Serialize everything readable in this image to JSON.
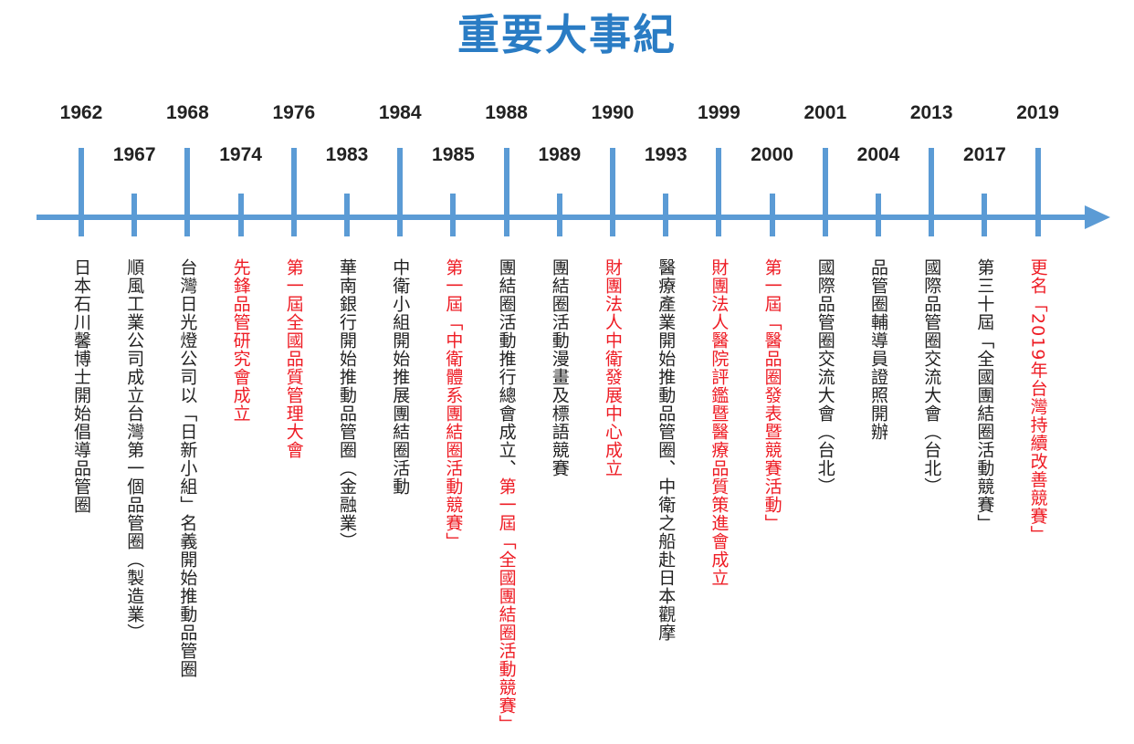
{
  "title": "重要大事紀",
  "events": [
    {
      "year": "1962",
      "text": "日本石川馨博士開始倡導品管圈",
      "highlight": false
    },
    {
      "year": "1967",
      "text": "順風工業公司成立台灣第一個品管圈（製造業）",
      "highlight": false
    },
    {
      "year": "1968",
      "text": "台灣日光燈公司以「日新小組」名義開始推動品管圈",
      "highlight": false
    },
    {
      "year": "1974",
      "text": "先鋒品管研究會成立",
      "highlight": true
    },
    {
      "year": "1976",
      "text": "第一屆全國品質管理大會",
      "highlight": true
    },
    {
      "year": "1983",
      "text": "華南銀行開始推動品管圈（金融業）",
      "highlight": false
    },
    {
      "year": "1984",
      "text": "中衛小組開始推展團結圈活動",
      "highlight": false
    },
    {
      "year": "1985",
      "text": "第一屆「中衛體系團結圈活動競賽」",
      "highlight": true
    },
    {
      "year": "1988",
      "text": "團結圈活動推行總會成立、",
      "text2": "第一屆「全國團結圈活動競賽」",
      "highlight": false
    },
    {
      "year": "1989",
      "text": "團結圈活動漫畫及標語競賽",
      "highlight": false
    },
    {
      "year": "1990",
      "text": "財團法人中衛發展中心成立",
      "highlight": true
    },
    {
      "year": "1993",
      "text": "醫療產業開始推動品管圈、中衛之船赴日本觀摩",
      "highlight": false
    },
    {
      "year": "1999",
      "text": "財團法人醫院評鑑暨醫療品質策進會成立",
      "highlight": true
    },
    {
      "year": "2000",
      "text": "第一屆「醫品圈發表暨競賽活動」",
      "highlight": true
    },
    {
      "year": "2001",
      "text": "國際品管圈交流大會（台北）",
      "highlight": false
    },
    {
      "year": "2004",
      "text": "品管圈輔導員證照開辦",
      "highlight": false
    },
    {
      "year": "2013",
      "text": "國際品管圈交流大會（台北）",
      "highlight": false
    },
    {
      "year": "2017",
      "text": "第三十屆「全國團結圈活動競賽」",
      "highlight": false
    },
    {
      "year": "2019",
      "text": "更名「2019年台灣持續改善競賽」",
      "highlight": true
    }
  ]
}
